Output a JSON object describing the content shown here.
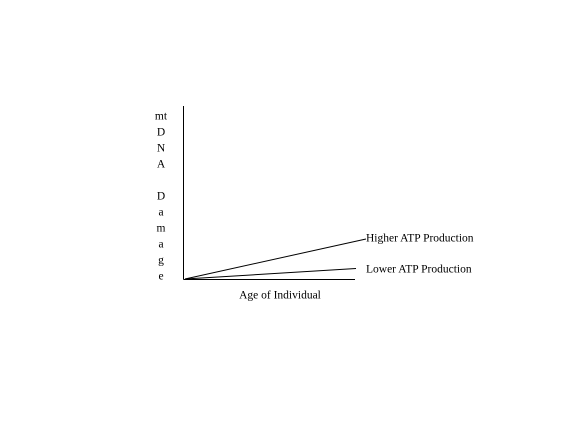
{
  "diagram": {
    "y_axis_label": [
      "mt",
      "D",
      "N",
      "A",
      "D",
      "a",
      "m",
      "a",
      "g",
      "e"
    ],
    "x_axis_label": "Age of Individual",
    "lines": [
      {
        "label": "Higher ATP Production"
      },
      {
        "label": "Lower ATP Production"
      }
    ]
  }
}
